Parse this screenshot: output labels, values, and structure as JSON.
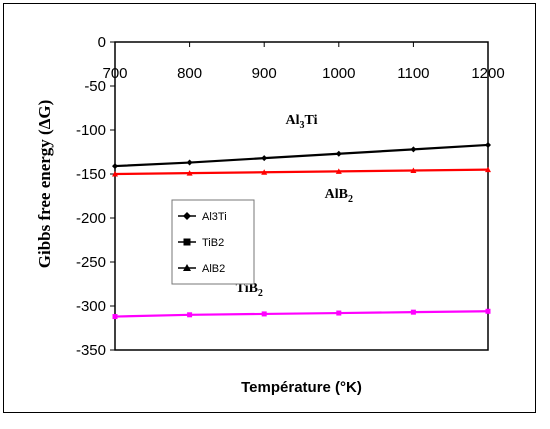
{
  "chart_data": {
    "type": "line",
    "xlabel": "Température (°K)",
    "ylabel": "Gibbs free energy (ΔG)",
    "x": [
      700,
      800,
      900,
      1000,
      1100,
      1200
    ],
    "xlim": [
      700,
      1200
    ],
    "ylim": [
      -350,
      0
    ],
    "yticks": [
      0,
      -50,
      -100,
      -150,
      -200,
      -250,
      -300,
      -350
    ],
    "xticks": [
      700,
      800,
      900,
      1000,
      1100,
      1200
    ],
    "grid": false,
    "legend_placement": "center-left",
    "series": [
      {
        "name": "Al3Ti",
        "marker": "diamond",
        "color": "#000000",
        "values": [
          -141,
          -137,
          -132,
          -127,
          -122,
          -117
        ]
      },
      {
        "name": "TiB2",
        "marker": "square",
        "color": "#ff00ff",
        "values": [
          -312,
          -310,
          -309,
          -308,
          -307,
          -306
        ]
      },
      {
        "name": "AlB2",
        "marker": "triangle",
        "color": "#ff0000",
        "values": [
          -150,
          -149,
          -148,
          -147,
          -146,
          -145
        ]
      }
    ],
    "annotations": [
      {
        "base": "Al",
        "sub": "3",
        "rest": "Ti",
        "x": 950,
        "y": -93
      },
      {
        "base": "AlB",
        "sub": "2",
        "rest": "",
        "x": 1000,
        "y": -177
      },
      {
        "base": "TiB",
        "sub": "2",
        "rest": "",
        "x": 880,
        "y": -284
      }
    ]
  }
}
